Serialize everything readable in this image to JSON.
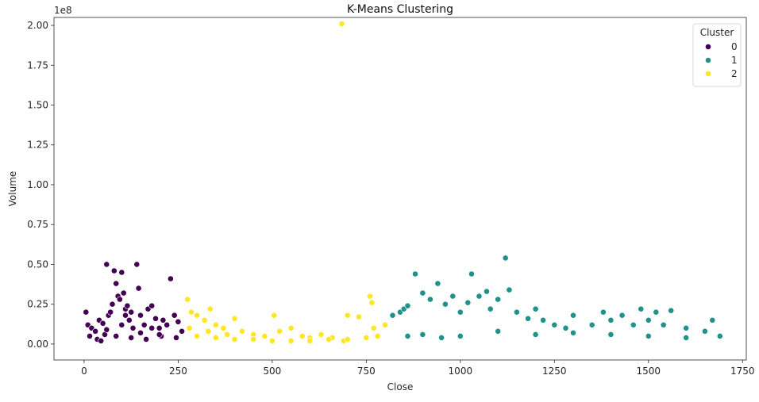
{
  "chart_data": {
    "type": "scatter",
    "title": "K-Means Clustering",
    "xlabel": "Close",
    "ylabel": "Volume",
    "y_scale_label": "1e8",
    "xlim": [
      -80,
      1760
    ],
    "ylim": [
      -0.1,
      2.05
    ],
    "x_ticks": [
      0,
      250,
      500,
      750,
      1000,
      1250,
      1500,
      1750
    ],
    "y_ticks": [
      0.0,
      0.25,
      0.5,
      0.75,
      1.0,
      1.25,
      1.5,
      1.75,
      2.0
    ],
    "y_tick_labels": [
      "0.00",
      "0.25",
      "0.50",
      "0.75",
      "1.00",
      "1.25",
      "1.50",
      "1.75",
      "2.00"
    ],
    "grid": false,
    "legend": {
      "title": "Cluster",
      "placement": "top-right"
    },
    "series": [
      {
        "name": "0",
        "color": "#440154",
        "points": [
          [
            5,
            0.2
          ],
          [
            10,
            0.12
          ],
          [
            15,
            0.05
          ],
          [
            20,
            0.1
          ],
          [
            30,
            0.08
          ],
          [
            40,
            0.15
          ],
          [
            50,
            0.13
          ],
          [
            55,
            0.06
          ],
          [
            60,
            0.5
          ],
          [
            65,
            0.18
          ],
          [
            70,
            0.2
          ],
          [
            75,
            0.25
          ],
          [
            80,
            0.46
          ],
          [
            85,
            0.38
          ],
          [
            90,
            0.3
          ],
          [
            95,
            0.28
          ],
          [
            100,
            0.45
          ],
          [
            105,
            0.32
          ],
          [
            110,
            0.22
          ],
          [
            115,
            0.24
          ],
          [
            120,
            0.15
          ],
          [
            125,
            0.2
          ],
          [
            130,
            0.1
          ],
          [
            140,
            0.5
          ],
          [
            145,
            0.35
          ],
          [
            150,
            0.18
          ],
          [
            160,
            0.12
          ],
          [
            170,
            0.22
          ],
          [
            180,
            0.24
          ],
          [
            190,
            0.16
          ],
          [
            200,
            0.1
          ],
          [
            210,
            0.15
          ],
          [
            220,
            0.12
          ],
          [
            230,
            0.41
          ],
          [
            240,
            0.18
          ],
          [
            250,
            0.14
          ],
          [
            260,
            0.08
          ],
          [
            35,
            0.03
          ],
          [
            45,
            0.02
          ],
          [
            85,
            0.05
          ],
          [
            125,
            0.04
          ],
          [
            165,
            0.03
          ],
          [
            205,
            0.05
          ],
          [
            245,
            0.04
          ],
          [
            100,
            0.12
          ],
          [
            150,
            0.07
          ],
          [
            200,
            0.06
          ],
          [
            60,
            0.09
          ],
          [
            110,
            0.18
          ],
          [
            180,
            0.1
          ]
        ]
      },
      {
        "name": "1",
        "color": "#21918c",
        "points": [
          [
            820,
            0.18
          ],
          [
            840,
            0.2
          ],
          [
            850,
            0.22
          ],
          [
            860,
            0.24
          ],
          [
            880,
            0.44
          ],
          [
            900,
            0.32
          ],
          [
            920,
            0.28
          ],
          [
            940,
            0.38
          ],
          [
            960,
            0.25
          ],
          [
            980,
            0.3
          ],
          [
            1000,
            0.2
          ],
          [
            1020,
            0.26
          ],
          [
            1030,
            0.44
          ],
          [
            1050,
            0.3
          ],
          [
            1070,
            0.33
          ],
          [
            1080,
            0.22
          ],
          [
            1100,
            0.28
          ],
          [
            1120,
            0.54
          ],
          [
            1130,
            0.34
          ],
          [
            1150,
            0.2
          ],
          [
            1180,
            0.16
          ],
          [
            1200,
            0.22
          ],
          [
            1220,
            0.15
          ],
          [
            1250,
            0.12
          ],
          [
            1280,
            0.1
          ],
          [
            1300,
            0.18
          ],
          [
            1350,
            0.12
          ],
          [
            1380,
            0.2
          ],
          [
            1400,
            0.15
          ],
          [
            1430,
            0.18
          ],
          [
            1460,
            0.12
          ],
          [
            1480,
            0.22
          ],
          [
            1500,
            0.15
          ],
          [
            1520,
            0.2
          ],
          [
            1540,
            0.12
          ],
          [
            1560,
            0.21
          ],
          [
            1600,
            0.1
          ],
          [
            1650,
            0.08
          ],
          [
            1670,
            0.15
          ],
          [
            1690,
            0.05
          ],
          [
            860,
            0.05
          ],
          [
            900,
            0.06
          ],
          [
            950,
            0.04
          ],
          [
            1000,
            0.05
          ],
          [
            1100,
            0.08
          ],
          [
            1200,
            0.06
          ],
          [
            1300,
            0.07
          ],
          [
            1400,
            0.06
          ],
          [
            1500,
            0.05
          ],
          [
            1600,
            0.04
          ]
        ]
      },
      {
        "name": "2",
        "color": "#fde725",
        "points": [
          [
            275,
            0.28
          ],
          [
            285,
            0.2
          ],
          [
            300,
            0.18
          ],
          [
            320,
            0.15
          ],
          [
            335,
            0.22
          ],
          [
            350,
            0.12
          ],
          [
            370,
            0.1
          ],
          [
            400,
            0.16
          ],
          [
            420,
            0.08
          ],
          [
            450,
            0.06
          ],
          [
            480,
            0.05
          ],
          [
            505,
            0.18
          ],
          [
            520,
            0.08
          ],
          [
            550,
            0.1
          ],
          [
            580,
            0.05
          ],
          [
            600,
            0.04
          ],
          [
            630,
            0.06
          ],
          [
            660,
            0.04
          ],
          [
            685,
            2.01
          ],
          [
            690,
            0.02
          ],
          [
            700,
            0.18
          ],
          [
            730,
            0.17
          ],
          [
            760,
            0.3
          ],
          [
            765,
            0.26
          ],
          [
            770,
            0.1
          ],
          [
            780,
            0.05
          ],
          [
            800,
            0.12
          ],
          [
            300,
            0.05
          ],
          [
            350,
            0.04
          ],
          [
            400,
            0.03
          ],
          [
            450,
            0.03
          ],
          [
            500,
            0.02
          ],
          [
            550,
            0.02
          ],
          [
            600,
            0.02
          ],
          [
            650,
            0.03
          ],
          [
            700,
            0.03
          ],
          [
            750,
            0.04
          ],
          [
            280,
            0.1
          ],
          [
            330,
            0.08
          ],
          [
            380,
            0.06
          ]
        ]
      }
    ]
  }
}
